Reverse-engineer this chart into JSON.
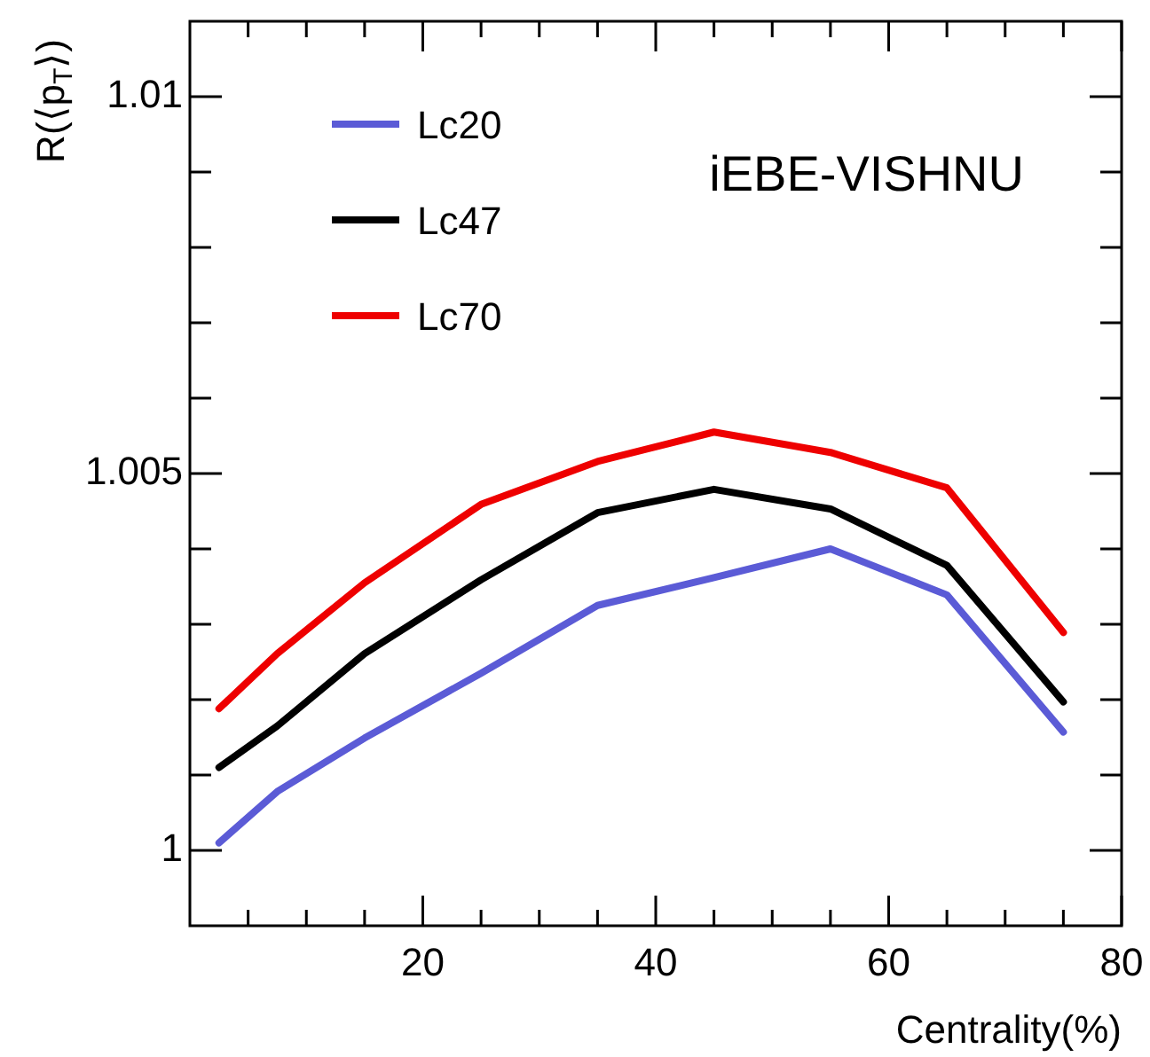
{
  "chart_data": {
    "type": "line",
    "xlabel": "Centrality(%)",
    "ylabel": "R(⟨p$_{T}$⟩)",
    "annotations": [
      "iEBE-VISHNU"
    ],
    "x": [
      2.5,
      7.5,
      15,
      25,
      35,
      45,
      55,
      65,
      75
    ],
    "series": [
      {
        "name": "Lc20",
        "color": "#5b5bd6",
        "values": [
          1.0001,
          1.00078,
          1.00149,
          1.00235,
          1.00325,
          1.00362,
          1.004,
          1.00339,
          1.00157
        ]
      },
      {
        "name": "Lc47",
        "color": "#000000",
        "values": [
          1.0011,
          1.00165,
          1.00261,
          1.00359,
          1.00448,
          1.00479,
          1.00453,
          1.00378,
          1.00197
        ]
      },
      {
        "name": "Lc70",
        "color": "#ee0000",
        "values": [
          1.00188,
          1.00261,
          1.00355,
          1.00459,
          1.00516,
          1.00555,
          1.00528,
          1.00481,
          1.00289
        ]
      }
    ],
    "xlim": [
      0,
      80
    ],
    "ylim": [
      0.999,
      1.011
    ],
    "xticks": [
      {
        "value": 5,
        "label": null
      },
      {
        "value": 10,
        "label": null
      },
      {
        "value": 15,
        "label": null
      },
      20,
      {
        "value": 25,
        "label": null
      },
      {
        "value": 30,
        "label": null
      },
      {
        "value": 35,
        "label": null
      },
      40,
      {
        "value": 45,
        "label": null
      },
      {
        "value": 50,
        "label": null
      },
      {
        "value": 55,
        "label": null
      },
      60,
      {
        "value": 65,
        "label": null
      },
      {
        "value": 70,
        "label": null
      },
      {
        "value": 75,
        "label": null
      },
      80
    ],
    "yticks": [
      1,
      {
        "value": 1.001,
        "label": null
      },
      {
        "value": 1.002,
        "label": null
      },
      {
        "value": 1.003,
        "label": null
      },
      {
        "value": 1.004,
        "label": null
      },
      1.005,
      {
        "value": 1.006,
        "label": null
      },
      {
        "value": 1.007,
        "label": null
      },
      {
        "value": 1.008,
        "label": null
      },
      {
        "value": 1.009,
        "label": null
      },
      1.01
    ],
    "legend": "top left",
    "grid": false,
    "line_style": "solid",
    "marker": "none"
  }
}
